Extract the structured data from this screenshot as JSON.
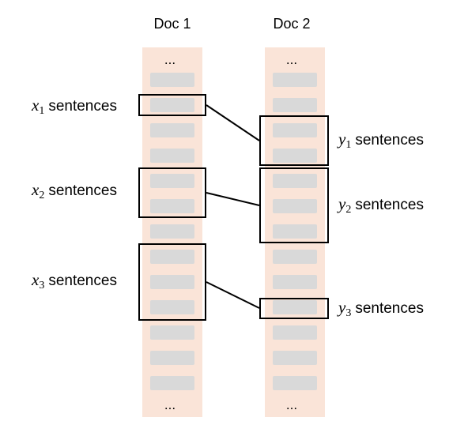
{
  "columns": [
    {
      "title": "Doc 1",
      "top_ellipsis": "...",
      "bottom_ellipsis": "..."
    },
    {
      "title": "Doc 2",
      "top_ellipsis": "...",
      "bottom_ellipsis": "..."
    }
  ],
  "doc1_groups": [
    {
      "var": "x",
      "sub": "1",
      "text": "sentences"
    },
    {
      "var": "x",
      "sub": "2",
      "text": "sentences"
    },
    {
      "var": "x",
      "sub": "3",
      "text": "sentences"
    }
  ],
  "doc2_groups": [
    {
      "var": "y",
      "sub": "1",
      "text": "sentences"
    },
    {
      "var": "y",
      "sub": "2",
      "text": "sentences"
    },
    {
      "var": "y",
      "sub": "3",
      "text": "sentences"
    }
  ],
  "colors": {
    "column_bg": "#fae4d8",
    "sentence": "#d9d9d9",
    "line": "#000000"
  }
}
